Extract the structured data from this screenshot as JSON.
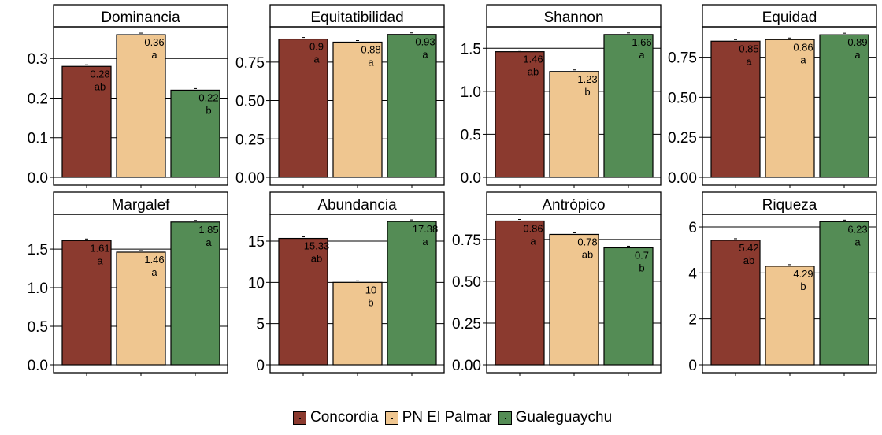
{
  "chart_data": [
    {
      "type": "bar",
      "title": "Dominancia",
      "categories": [
        "Concordia",
        "PN El Palmar",
        "Gualeguaychu"
      ],
      "values": [
        0.28,
        0.36,
        0.22
      ],
      "value_labels": [
        "0.28",
        "0.36",
        "0.22"
      ],
      "letters": [
        "ab",
        "a",
        "b"
      ],
      "ylim": [
        0,
        0.38
      ],
      "yticks": [
        0.0,
        0.1,
        0.2,
        0.3
      ],
      "ytick_labels": [
        "0.0",
        "0.1",
        "0.2",
        "0.3"
      ]
    },
    {
      "type": "bar",
      "title": "Equitatibilidad",
      "categories": [
        "Concordia",
        "PN El Palmar",
        "Gualeguaychu"
      ],
      "values": [
        0.9,
        0.88,
        0.93
      ],
      "value_labels": [
        "0.9",
        "0.88",
        "0.93"
      ],
      "letters": [
        "a",
        "a",
        "a"
      ],
      "ylim": [
        0,
        0.98
      ],
      "yticks": [
        0.0,
        0.25,
        0.5,
        0.75
      ],
      "ytick_labels": [
        "0.00",
        "0.25",
        "0.50",
        "0.75"
      ]
    },
    {
      "type": "bar",
      "title": "Shannon",
      "categories": [
        "Concordia",
        "PN El Palmar",
        "Gualeguaychu"
      ],
      "values": [
        1.46,
        1.23,
        1.66
      ],
      "value_labels": [
        "1.46",
        "1.23",
        "1.66"
      ],
      "letters": [
        "ab",
        "b",
        "a"
      ],
      "ylim": [
        0,
        1.75
      ],
      "yticks": [
        0.0,
        0.5,
        1.0,
        1.5
      ],
      "ytick_labels": [
        "0.0",
        "0.5",
        "1.0",
        "1.5"
      ]
    },
    {
      "type": "bar",
      "title": "Equidad",
      "categories": [
        "Concordia",
        "PN El Palmar",
        "Gualeguaychu"
      ],
      "values": [
        0.85,
        0.86,
        0.89
      ],
      "value_labels": [
        "0.85",
        "0.86",
        "0.89"
      ],
      "letters": [
        "a",
        "a",
        "a"
      ],
      "ylim": [
        0,
        0.94
      ],
      "yticks": [
        0.0,
        0.25,
        0.5,
        0.75
      ],
      "ytick_labels": [
        "0.00",
        "0.25",
        "0.50",
        "0.75"
      ]
    },
    {
      "type": "bar",
      "title": "Margalef",
      "categories": [
        "Concordia",
        "PN El Palmar",
        "Gualeguaychu"
      ],
      "values": [
        1.61,
        1.46,
        1.85
      ],
      "value_labels": [
        "1.61",
        "1.46",
        "1.85"
      ],
      "letters": [
        "a",
        "a",
        "a"
      ],
      "ylim": [
        0,
        1.95
      ],
      "yticks": [
        0.0,
        0.5,
        1.0,
        1.5
      ],
      "ytick_labels": [
        "0.0",
        "0.5",
        "1.0",
        "1.5"
      ]
    },
    {
      "type": "bar",
      "title": "Abundancia",
      "categories": [
        "Concordia",
        "PN El Palmar",
        "Gualeguaychu"
      ],
      "values": [
        15.33,
        10,
        17.38
      ],
      "value_labels": [
        "15.33",
        "10",
        "17.38"
      ],
      "letters": [
        "ab",
        "b",
        "a"
      ],
      "ylim": [
        0,
        18.25
      ],
      "yticks": [
        0,
        5,
        10,
        15
      ],
      "ytick_labels": [
        "0",
        "5",
        "10",
        "15"
      ]
    },
    {
      "type": "bar",
      "title": "Antrópico",
      "categories": [
        "Concordia",
        "PN El Palmar",
        "Gualeguaychu"
      ],
      "values": [
        0.86,
        0.78,
        0.7
      ],
      "value_labels": [
        "0.86",
        "0.78",
        "0.7"
      ],
      "letters": [
        "a",
        "ab",
        "b"
      ],
      "ylim": [
        0,
        0.9
      ],
      "yticks": [
        0.0,
        0.25,
        0.5,
        0.75
      ],
      "ytick_labels": [
        "0.00",
        "0.25",
        "0.50",
        "0.75"
      ]
    },
    {
      "type": "bar",
      "title": "Riqueza",
      "categories": [
        "Concordia",
        "PN El Palmar",
        "Gualeguaychu"
      ],
      "values": [
        5.42,
        4.29,
        6.23
      ],
      "value_labels": [
        "5.42",
        "4.29",
        "6.23"
      ],
      "letters": [
        "ab",
        "b",
        "a"
      ],
      "ylim": [
        0,
        6.55
      ],
      "yticks": [
        0,
        2,
        4,
        6
      ],
      "ytick_labels": [
        "0",
        "2",
        "4",
        "6"
      ]
    }
  ],
  "colors": {
    "Concordia": "#8b3a2f",
    "PN El Palmar": "#efc690",
    "Gualeguaychu": "#548c55"
  },
  "legend": {
    "items": [
      "Concordia",
      "PN El Palmar",
      "Gualeguaychu"
    ],
    "position": "bottom"
  }
}
